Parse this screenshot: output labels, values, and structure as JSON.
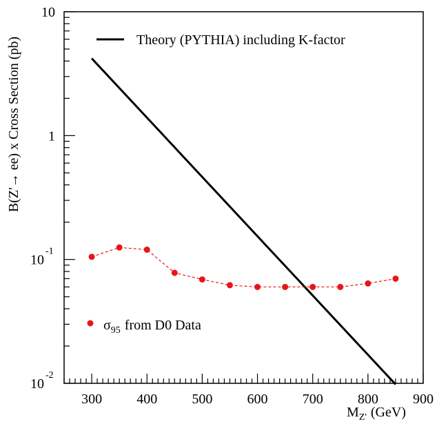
{
  "chart_data": {
    "type": "line",
    "xlabel": "M",
    "xlabel_sub": "Z'",
    "xlabel_unit": "(GeV)",
    "ylabel": "B(Z'→ ee) x Cross Section (pb)",
    "xlim": [
      250,
      900
    ],
    "ylim": [
      0.01,
      10
    ],
    "yscale": "log",
    "x_ticks": [
      "300",
      "400",
      "500",
      "600",
      "700",
      "800",
      "900"
    ],
    "y_ticks": [
      {
        "value": 10,
        "base": "10",
        "exp": ""
      },
      {
        "value": 1,
        "base": "1",
        "exp": ""
      },
      {
        "value": 0.1,
        "base": "10",
        "exp": "-1"
      },
      {
        "value": 0.01,
        "base": "10",
        "exp": "-2"
      }
    ],
    "series": [
      {
        "name": "Theory (PYTHIA) including K-factor",
        "style": "solid",
        "color": "#000000",
        "x": [
          300,
          850
        ],
        "y": [
          4.2,
          0.0098
        ]
      },
      {
        "name": "from D0 Data",
        "name_symbol": "σ",
        "name_sub": "95",
        "style": "dashed-markers",
        "color": "#e8141b",
        "x": [
          300,
          350,
          400,
          450,
          500,
          550,
          600,
          650,
          700,
          750,
          800,
          850
        ],
        "y": [
          0.105,
          0.125,
          0.12,
          0.078,
          0.069,
          0.062,
          0.06,
          0.06,
          0.06,
          0.06,
          0.064,
          0.07
        ]
      }
    ],
    "legend_position": "top-right (line), bottom-left (markers)"
  }
}
